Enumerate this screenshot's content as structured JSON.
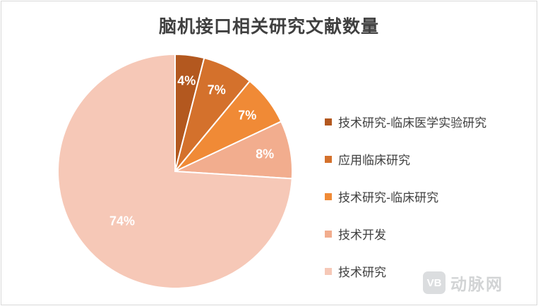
{
  "chart_data": {
    "type": "pie",
    "title": "脑机接口相关研究文献数量",
    "slices": [
      {
        "label": "技术研究-临床医学实验研究",
        "value": 4,
        "display": "4%",
        "color": "#b3581f"
      },
      {
        "label": "应用临床研究",
        "value": 7,
        "display": "7%",
        "color": "#d4712c"
      },
      {
        "label": "技术研究-临床研究",
        "value": 7,
        "display": "7%",
        "color": "#f08a36"
      },
      {
        "label": "技术开发",
        "value": 8,
        "display": "8%",
        "color": "#f2ad8e"
      },
      {
        "label": "技术研究",
        "value": 74,
        "display": "74%",
        "color": "#f6c8b7"
      }
    ],
    "start_angle_deg": 0,
    "direction": "clockwise",
    "legend_position": "right",
    "label_color": "#ffffff"
  },
  "watermark": {
    "logo_text": "VB",
    "text": "动脉网"
  }
}
